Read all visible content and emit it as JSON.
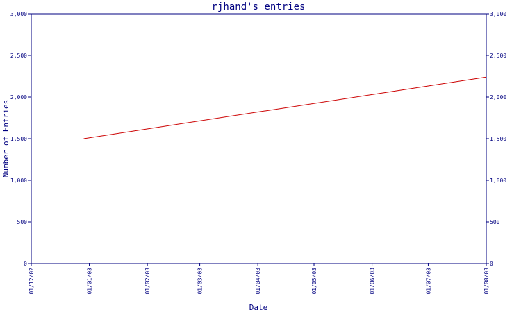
{
  "chart_data": {
    "type": "line",
    "title": "rjhand's entries",
    "xlabel": "Date",
    "ylabel": "Number of Entries",
    "ylim": [
      0,
      3000
    ],
    "yticks": [
      0,
      500,
      1000,
      1500,
      2000,
      2500,
      3000
    ],
    "ytick_labels": [
      "0",
      "500",
      "1,000",
      "1,500",
      "2,000",
      "2,500",
      "3,000"
    ],
    "xlim": [
      "2002-12-01",
      "2003-08-01"
    ],
    "xticks": [
      "2002-12-01",
      "2003-01-01",
      "2003-02-01",
      "2003-03-01",
      "2003-04-01",
      "2003-05-01",
      "2003-06-01",
      "2003-07-01",
      "2003-08-01"
    ],
    "xtick_labels": [
      "01/12/02",
      "01/01/03",
      "01/02/03",
      "01/03/03",
      "01/04/03",
      "01/05/03",
      "01/06/03",
      "01/07/03",
      "01/08/03"
    ],
    "grid": false,
    "right_axis": true,
    "series": [
      {
        "color": "#cc0000",
        "x": [
          "2002-12-29",
          "2003-08-01"
        ],
        "y": [
          1500,
          2240
        ]
      }
    ],
    "colors": {
      "axis": "#000080",
      "text": "#000080",
      "line": "#cc0000"
    }
  }
}
